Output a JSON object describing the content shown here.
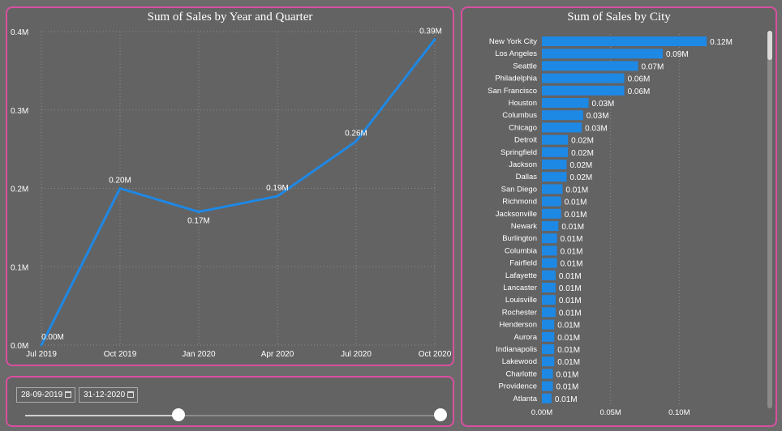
{
  "colors": {
    "accent": "#1e88e5",
    "border": "#d94fa0",
    "panel": "#636363",
    "text": "#ffffff"
  },
  "line_chart": {
    "title": "Sum of Sales by Year and Quarter"
  },
  "bar_chart": {
    "title": "Sum of Sales by City"
  },
  "slicer": {
    "start_date": "28-09-2019",
    "end_date": "31-12-2020",
    "start_icon": "calendar-icon",
    "end_icon": "calendar-icon",
    "range_fraction": [
      0.37,
      1.0
    ]
  },
  "chart_data": [
    {
      "type": "line",
      "title": "Sum of Sales by Year and Quarter",
      "x": [
        "Jul 2019",
        "Oct 2019",
        "Jan 2020",
        "Apr 2020",
        "Jul 2020",
        "Oct 2020"
      ],
      "values": [
        0.0,
        0.2,
        0.17,
        0.19,
        0.26,
        0.39
      ],
      "data_labels": [
        "0.00M",
        "0.20M",
        "0.17M",
        "0.19M",
        "0.26M",
        "0.39M"
      ],
      "yticks": [
        "0.0M",
        "0.1M",
        "0.2M",
        "0.3M",
        "0.4M"
      ],
      "ylim": [
        0,
        0.4
      ],
      "grid": true
    },
    {
      "type": "bar",
      "orientation": "horizontal",
      "title": "Sum of Sales by City",
      "categories": [
        "New York City",
        "Los Angeles",
        "Seattle",
        "Philadelphia",
        "San Francisco",
        "Houston",
        "Columbus",
        "Chicago",
        "Detroit",
        "Springfield",
        "Jackson",
        "Dallas",
        "San Diego",
        "Richmond",
        "Jacksonville",
        "Newark",
        "Burlington",
        "Columbia",
        "Fairfield",
        "Lafayette",
        "Lancaster",
        "Louisville",
        "Rochester",
        "Henderson",
        "Aurora",
        "Indianapolis",
        "Lakewood",
        "Charlotte",
        "Providence",
        "Atlanta"
      ],
      "values": [
        0.12,
        0.088,
        0.07,
        0.06,
        0.06,
        0.034,
        0.03,
        0.029,
        0.019,
        0.019,
        0.018,
        0.018,
        0.015,
        0.014,
        0.014,
        0.012,
        0.011,
        0.011,
        0.011,
        0.01,
        0.01,
        0.01,
        0.01,
        0.009,
        0.009,
        0.009,
        0.009,
        0.008,
        0.008,
        0.007
      ],
      "data_labels": [
        "0.12M",
        "0.09M",
        "0.07M",
        "0.06M",
        "0.06M",
        "0.03M",
        "0.03M",
        "0.03M",
        "0.02M",
        "0.02M",
        "0.02M",
        "0.02M",
        "0.01M",
        "0.01M",
        "0.01M",
        "0.01M",
        "0.01M",
        "0.01M",
        "0.01M",
        "0.01M",
        "0.01M",
        "0.01M",
        "0.01M",
        "0.01M",
        "0.01M",
        "0.01M",
        "0.01M",
        "0.01M",
        "0.01M",
        "0.01M"
      ],
      "xticks": [
        "0.00M",
        "0.05M",
        "0.10M"
      ],
      "xlim": [
        0,
        0.14
      ],
      "grid": true
    }
  ]
}
